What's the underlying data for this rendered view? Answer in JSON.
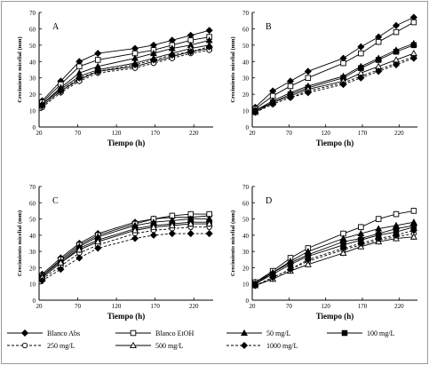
{
  "colors": {
    "line": "#000000",
    "axis": "#000000",
    "background": "#ffffff"
  },
  "legend": {
    "items": [
      {
        "name": "Blanco Abs",
        "marker": "diamond",
        "fill": "filled",
        "dash": "solid"
      },
      {
        "name": "Blanco EtOH",
        "marker": "square",
        "fill": "open",
        "dash": "solid"
      },
      {
        "name": "50 mg/L",
        "marker": "triangle",
        "fill": "filled",
        "dash": "solid"
      },
      {
        "name": "100 mg/L",
        "marker": "square",
        "fill": "filled",
        "dash": "solid"
      },
      {
        "name": "250 mg/L",
        "marker": "circle",
        "fill": "open",
        "dash": "dashed"
      },
      {
        "name": "500 mg/L",
        "marker": "triangle",
        "fill": "open",
        "dash": "solid"
      },
      {
        "name": "1000 mg/L",
        "marker": "diamond",
        "fill": "filled",
        "dash": "dashed"
      }
    ]
  },
  "chart_data": [
    {
      "type": "line",
      "panel_label": "A",
      "xlabel": "Tiempo (h)",
      "ylabel": "Crecimiento micelial (mm)",
      "xlim": [
        20,
        245
      ],
      "ylim": [
        0,
        70
      ],
      "xticks": [
        20,
        70,
        120,
        170,
        220
      ],
      "yticks": [
        0,
        10,
        20,
        30,
        40,
        50,
        60,
        70
      ],
      "x": [
        24,
        48,
        72,
        96,
        144,
        168,
        192,
        216,
        240
      ],
      "series": [
        {
          "name": "Blanco Abs",
          "values": [
            16,
            28,
            40,
            45,
            48,
            50,
            53,
            56,
            59
          ]
        },
        {
          "name": "Blanco EtOH",
          "values": [
            15,
            26,
            37,
            41,
            45,
            47,
            50,
            53,
            55
          ]
        },
        {
          "name": "50 mg/L",
          "values": [
            14,
            24,
            33,
            37,
            42,
            45,
            48,
            50,
            53
          ]
        },
        {
          "name": "100 mg/L",
          "values": [
            13,
            22,
            29,
            34,
            37,
            40,
            43,
            46,
            48
          ]
        },
        {
          "name": "250 mg/L",
          "values": [
            12,
            21,
            28,
            33,
            36,
            39,
            42,
            45,
            47
          ]
        },
        {
          "name": "500 mg/L",
          "values": [
            14,
            23,
            31,
            35,
            39,
            42,
            45,
            48,
            50
          ]
        },
        {
          "name": "1000 mg/L",
          "values": [
            13,
            22,
            30,
            34,
            38,
            41,
            44,
            46,
            49
          ]
        }
      ]
    },
    {
      "type": "line",
      "panel_label": "B",
      "xlabel": "Tiempo (h)",
      "ylabel": "Crecimiento micelial (mm)",
      "xlim": [
        20,
        245
      ],
      "ylim": [
        0,
        70
      ],
      "xticks": [
        20,
        70,
        120,
        170,
        220
      ],
      "yticks": [
        0,
        10,
        20,
        30,
        40,
        50,
        60,
        70
      ],
      "x": [
        24,
        48,
        72,
        96,
        144,
        168,
        192,
        216,
        240
      ],
      "series": [
        {
          "name": "Blanco Abs",
          "values": [
            12,
            22,
            28,
            34,
            42,
            49,
            55,
            62,
            67
          ]
        },
        {
          "name": "Blanco EtOH",
          "values": [
            11,
            19,
            25,
            30,
            39,
            45,
            52,
            58,
            64
          ]
        },
        {
          "name": "50 mg/L",
          "values": [
            10,
            16,
            21,
            25,
            31,
            37,
            42,
            47,
            51
          ]
        },
        {
          "name": "100 mg/L",
          "values": [
            10,
            15,
            20,
            24,
            30,
            36,
            41,
            46,
            50
          ]
        },
        {
          "name": "250 mg/L",
          "values": [
            9,
            14,
            18,
            22,
            27,
            31,
            35,
            39,
            43
          ]
        },
        {
          "name": "500 mg/L",
          "values": [
            9,
            15,
            19,
            23,
            28,
            33,
            37,
            41,
            45
          ]
        },
        {
          "name": "1000 mg/L",
          "values": [
            9,
            14,
            18,
            21,
            26,
            30,
            34,
            38,
            42
          ]
        }
      ]
    },
    {
      "type": "line",
      "panel_label": "C",
      "xlabel": "Tiempo (h)",
      "ylabel": "Crecimiento micelial (mm)",
      "xlim": [
        20,
        245
      ],
      "ylim": [
        0,
        70
      ],
      "xticks": [
        20,
        70,
        120,
        170,
        220
      ],
      "yticks": [
        0,
        10,
        20,
        30,
        40,
        50,
        60,
        70
      ],
      "x": [
        24,
        48,
        72,
        96,
        144,
        168,
        192,
        216,
        240
      ],
      "series": [
        {
          "name": "Blanco Abs",
          "values": [
            16,
            26,
            35,
            41,
            48,
            50,
            51,
            51,
            52
          ]
        },
        {
          "name": "Blanco EtOH",
          "values": [
            15,
            25,
            34,
            40,
            47,
            50,
            52,
            53,
            53
          ]
        },
        {
          "name": "50 mg/L",
          "values": [
            15,
            24,
            33,
            39,
            46,
            48,
            49,
            50,
            50
          ]
        },
        {
          "name": "100 mg/L",
          "values": [
            14,
            23,
            32,
            37,
            44,
            46,
            47,
            48,
            48
          ]
        },
        {
          "name": "250 mg/L",
          "values": [
            13,
            21,
            29,
            34,
            41,
            43,
            44,
            45,
            45
          ]
        },
        {
          "name": "500 mg/L",
          "values": [
            14,
            23,
            31,
            36,
            43,
            45,
            46,
            47,
            47
          ]
        },
        {
          "name": "1000 mg/L",
          "values": [
            12,
            19,
            26,
            32,
            38,
            40,
            41,
            41,
            41
          ]
        }
      ]
    },
    {
      "type": "line",
      "panel_label": "D",
      "xlabel": "Tiempo (h)",
      "ylabel": "Crecimiento micelial (mm)",
      "xlim": [
        20,
        245
      ],
      "ylim": [
        0,
        70
      ],
      "xticks": [
        20,
        70,
        120,
        170,
        220
      ],
      "yticks": [
        0,
        10,
        20,
        30,
        40,
        50,
        60,
        70
      ],
      "x": [
        24,
        48,
        72,
        96,
        144,
        168,
        192,
        216,
        240
      ],
      "series": [
        {
          "name": "Blanco Abs",
          "values": [
            11,
            17,
            23,
            28,
            36,
            38,
            41,
            44,
            46
          ]
        },
        {
          "name": "Blanco EtOH",
          "values": [
            11,
            18,
            26,
            32,
            41,
            45,
            50,
            53,
            55
          ]
        },
        {
          "name": "50 mg/L",
          "values": [
            10,
            17,
            24,
            30,
            38,
            41,
            44,
            46,
            48
          ]
        },
        {
          "name": "100 mg/L",
          "values": [
            10,
            16,
            22,
            27,
            34,
            37,
            40,
            42,
            45
          ]
        },
        {
          "name": "250 mg/L",
          "values": [
            9,
            14,
            19,
            24,
            31,
            34,
            37,
            39,
            41
          ]
        },
        {
          "name": "500 mg/L",
          "values": [
            9,
            13,
            18,
            22,
            29,
            33,
            36,
            38,
            39
          ]
        },
        {
          "name": "1000 mg/L",
          "values": [
            9,
            14,
            19,
            25,
            32,
            35,
            38,
            40,
            43
          ]
        }
      ]
    }
  ]
}
